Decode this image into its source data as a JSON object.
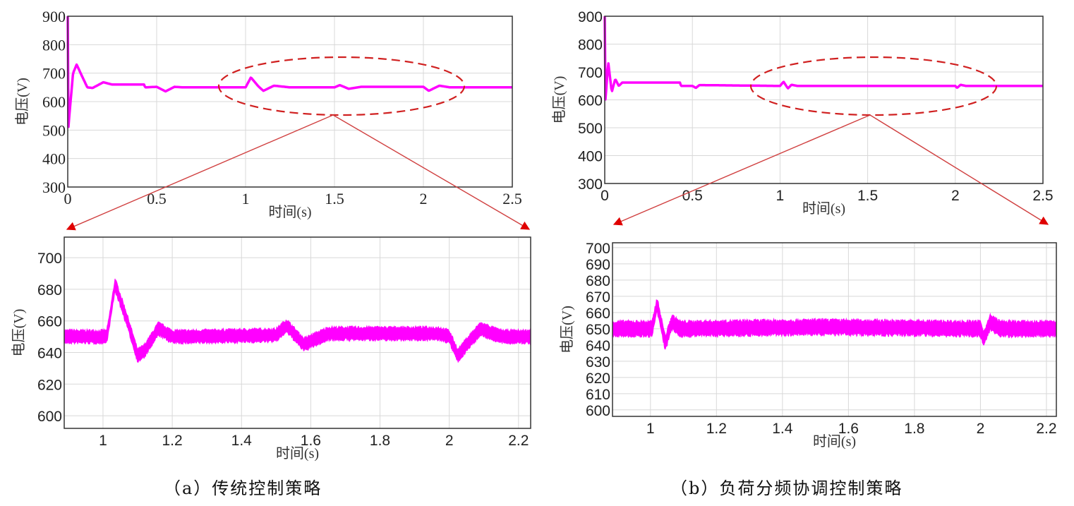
{
  "captions": {
    "a": "（a）传统控制策略",
    "b": "（b）负荷分频协调控制策略"
  },
  "colors": {
    "trace": "#ff00ff",
    "annotation": "#d02020",
    "grid": "#d8d8d8"
  },
  "chart_data": [
    {
      "id": "a-full",
      "type": "line",
      "title": "",
      "xlabel": "时间(s)",
      "ylabel": "电压(V)",
      "xlim": [
        0,
        2.5
      ],
      "ylim": [
        300,
        900
      ],
      "grid": true,
      "xticks": [
        0,
        0.5,
        1,
        1.5,
        2,
        2.5
      ],
      "xtick_labels": [
        "0",
        "0.5",
        "1",
        "1.5",
        "2",
        "2.5"
      ],
      "yticks": [
        300,
        400,
        500,
        600,
        700,
        800,
        900
      ],
      "ytick_labels": [
        "300",
        "400",
        "500",
        "600",
        "700",
        "800",
        "900"
      ],
      "series": [
        {
          "name": "传统控制策略 电压",
          "band": 3,
          "x": [
            0,
            0.004,
            0.01,
            0.03,
            0.05,
            0.08,
            0.11,
            0.14,
            0.2,
            0.25,
            0.43,
            0.435,
            0.5,
            0.55,
            0.6,
            0.65,
            1.0,
            1.03,
            1.07,
            1.1,
            1.16,
            1.25,
            1.5,
            1.53,
            1.58,
            1.65,
            2.0,
            2.03,
            2.09,
            2.15,
            2.5
          ],
          "y": [
            900,
            510,
            560,
            700,
            730,
            690,
            650,
            648,
            668,
            660,
            660,
            650,
            652,
            636,
            652,
            650,
            650,
            685,
            655,
            638,
            656,
            650,
            650,
            658,
            645,
            652,
            652,
            638,
            656,
            650,
            650
          ]
        }
      ],
      "annotation": "dashed ellipse around 0.85–2.2 s, zoomed below"
    },
    {
      "id": "a-zoom",
      "type": "line",
      "title": "",
      "xlabel": "时间(s)",
      "ylabel": "电压(V)",
      "xlim": [
        0.888,
        2.235
      ],
      "ylim": [
        592,
        713
      ],
      "grid": true,
      "xticks": [
        1,
        1.2,
        1.4,
        1.6,
        1.8,
        2,
        2.2
      ],
      "xtick_labels": [
        "1",
        "1.2",
        "1.4",
        "1.6",
        "1.8",
        "2",
        "2.2"
      ],
      "yticks": [
        600,
        620,
        640,
        660,
        680,
        700
      ],
      "ytick_labels": [
        "600",
        "620",
        "640",
        "660",
        "680",
        "700"
      ],
      "series": [
        {
          "name": "传统控制策略 电压",
          "band": 4,
          "x": [
            0.888,
            1.01,
            1.015,
            1.035,
            1.07,
            1.1,
            1.12,
            1.16,
            1.2,
            1.25,
            1.5,
            1.53,
            1.58,
            1.65,
            1.97,
            2.0,
            2.025,
            2.05,
            2.09,
            2.15,
            2.235
          ],
          "y": [
            650,
            650,
            655,
            683,
            660,
            638,
            641,
            655,
            650,
            650,
            651,
            657,
            645,
            652,
            652,
            650,
            638,
            645,
            655,
            650,
            650
          ]
        }
      ]
    },
    {
      "id": "b-full",
      "type": "line",
      "title": "",
      "xlabel": "时间(s)",
      "ylabel": "电压(V)",
      "xlim": [
        0,
        2.5
      ],
      "ylim": [
        300,
        900
      ],
      "grid": true,
      "xticks": [
        0,
        0.5,
        1,
        1.5,
        2,
        2.5
      ],
      "xtick_labels": [
        "0",
        "0.5",
        "1",
        "1.5",
        "2",
        "2.5"
      ],
      "yticks": [
        300,
        400,
        500,
        600,
        700,
        800,
        900
      ],
      "ytick_labels": [
        "300",
        "400",
        "500",
        "600",
        "700",
        "800",
        "900"
      ],
      "series": [
        {
          "name": "负荷分频协调控制策略 电压",
          "band": 3,
          "x": [
            0,
            0.004,
            0.02,
            0.04,
            0.06,
            0.08,
            0.1,
            0.43,
            0.435,
            0.5,
            0.52,
            0.54,
            1.0,
            1.02,
            1.045,
            1.065,
            1.1,
            2.0,
            2.01,
            2.03,
            2.06,
            2.5
          ],
          "y": [
            900,
            600,
            735,
            628,
            675,
            650,
            662,
            662,
            650,
            650,
            643,
            653,
            650,
            665,
            641,
            654,
            650,
            650,
            643,
            654,
            650,
            650
          ]
        }
      ],
      "annotation": "dashed ellipse around 0.85–2.2 s, zoomed below"
    },
    {
      "id": "b-zoom",
      "type": "line",
      "title": "",
      "xlabel": "时间(s)",
      "ylabel": "电压(V)",
      "xlim": [
        0.885,
        2.23
      ],
      "ylim": [
        596,
        703
      ],
      "grid": true,
      "xticks": [
        1,
        1.2,
        1.4,
        1.6,
        1.8,
        2,
        2.2
      ],
      "xtick_labels": [
        "1",
        "1.2",
        "1.4",
        "1.6",
        "1.8",
        "2",
        "2.2"
      ],
      "yticks": [
        600,
        610,
        620,
        630,
        640,
        650,
        660,
        670,
        680,
        690,
        700
      ],
      "ytick_labels": [
        "600",
        "610",
        "620",
        "630",
        "640",
        "650",
        "660",
        "670",
        "680",
        "690",
        "700"
      ],
      "series": [
        {
          "name": "负荷分频协调控制策略 电压",
          "band": 4.5,
          "x": [
            0.885,
            1.005,
            1.02,
            1.045,
            1.065,
            1.09,
            1.5,
            1.52,
            1.99,
            2.0,
            2.01,
            2.03,
            2.06,
            2.23
          ],
          "y": [
            650,
            650,
            665,
            641,
            654,
            650,
            651,
            651,
            650,
            650,
            644,
            654,
            650,
            650
          ]
        }
      ]
    }
  ]
}
